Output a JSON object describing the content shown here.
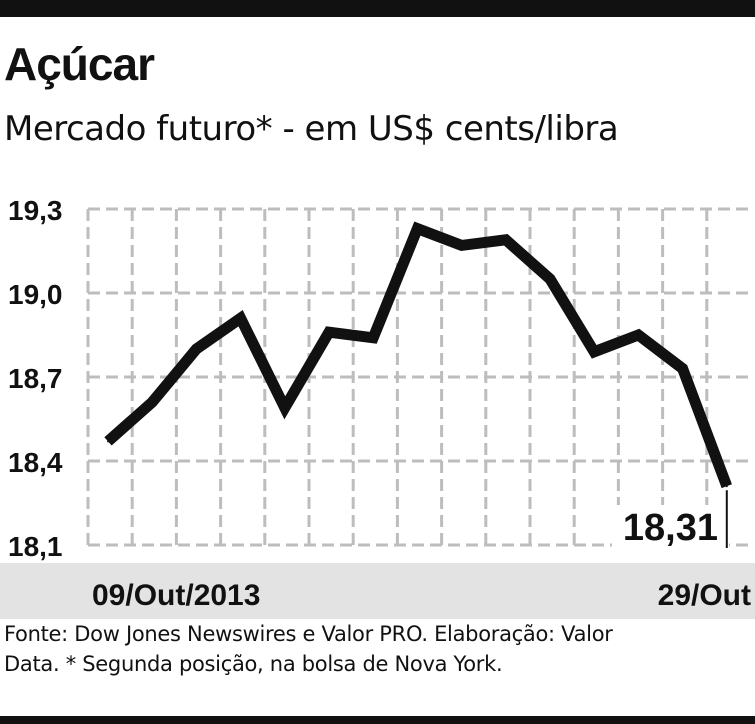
{
  "header": {
    "title": "Açúcar",
    "subtitle": "Mercado futuro* - em US$ cents/libra"
  },
  "chart_data": {
    "type": "line",
    "title": "Açúcar",
    "subtitle": "Mercado futuro* - em US$ cents/libra",
    "xlabel": "",
    "ylabel": "",
    "x_start_label": "09/Out/2013",
    "x_end_label": "29/Out",
    "ylim": [
      18.1,
      19.3
    ],
    "y_ticks": [
      18.1,
      18.4,
      18.7,
      19.0,
      19.3
    ],
    "y_tick_labels": [
      "18,1",
      "18,4",
      "18,7",
      "19,0",
      "19,3"
    ],
    "grid": true,
    "series": [
      {
        "values": [
          18.47,
          18.61,
          18.8,
          18.91,
          18.59,
          18.86,
          18.84,
          19.23,
          19.17,
          19.19,
          19.05,
          18.79,
          18.85,
          18.73,
          18.31
        ]
      }
    ],
    "last_value_label": "18,31",
    "colors": {
      "line": "#111111",
      "grid": "#bdbdbd",
      "band": "#e3e3e3"
    }
  },
  "footer": {
    "source_line1": "Fonte: Dow Jones Newswires e Valor PRO. Elaboração: Valor",
    "source_line2": "Data. * Segunda posição, na bolsa de Nova York."
  }
}
